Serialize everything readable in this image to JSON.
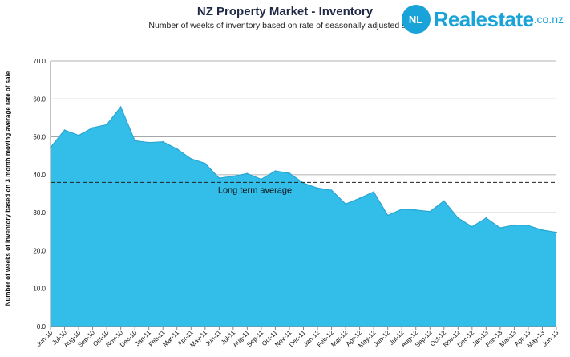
{
  "header": {
    "title": "NZ Property Market - Inventory",
    "subtitle": "Number of weeks of inventory based on rate of seasonally adjusted sales"
  },
  "logo": {
    "badge": "NL",
    "name": "Realestate",
    "suffix": ".co.nz"
  },
  "chart_data": {
    "type": "area",
    "title": "NZ Property Market - Inventory",
    "subtitle": "Number of weeks of inventory based on rate of seasonally adjusted sales",
    "xlabel": "",
    "ylabel": "Number of weeks of inventory based on 3 month moving average rate of sale",
    "ylim": [
      0,
      70
    ],
    "yticks": [
      "0.0",
      "10.0",
      "20.0",
      "30.0",
      "40.0",
      "50.0",
      "60.0",
      "70.0"
    ],
    "grid": true,
    "categories": [
      "Jun-10",
      "Jul-10",
      "Aug-10",
      "Sep-10",
      "Oct-10",
      "Nov-10",
      "Dec-10",
      "Jan-11",
      "Feb-11",
      "Mar-11",
      "Apr-11",
      "May-11",
      "Jun-11",
      "Jul-11",
      "Aug-11",
      "Sep-11",
      "Oct-11",
      "Nov-11",
      "Dec-11",
      "Jan-12",
      "Feb-12",
      "Mar-12",
      "Apr-12",
      "May-12",
      "Jun-12",
      "Jul-12",
      "Aug-12",
      "Sep-12",
      "Oct-12",
      "Nov-12",
      "Dec-12",
      "Jan-13",
      "Feb-13",
      "Mar-13",
      "Apr-13",
      "May-13",
      "Jun-13"
    ],
    "series": [
      {
        "name": "Inventory",
        "color": "#33bde9",
        "values": [
          47.2,
          51.8,
          50.4,
          52.4,
          53.2,
          57.9,
          49.0,
          48.5,
          48.7,
          46.8,
          44.2,
          43.0,
          39.1,
          39.6,
          40.3,
          38.8,
          41.0,
          40.4,
          37.8,
          36.5,
          35.9,
          32.3,
          33.8,
          35.5,
          29.3,
          30.9,
          30.7,
          30.3,
          33.1,
          28.6,
          26.3,
          28.6,
          26.0,
          26.7,
          26.6,
          25.4,
          24.8
        ]
      }
    ],
    "reference_lines": [
      {
        "label": "Long term average",
        "value": 38.0,
        "style": "dashed"
      }
    ]
  }
}
